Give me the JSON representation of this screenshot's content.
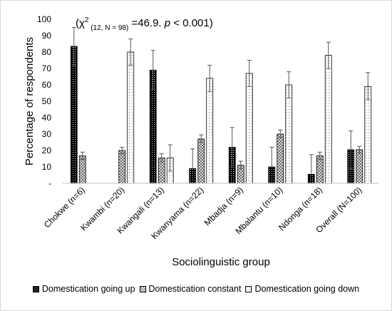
{
  "chart_data": {
    "type": "bar",
    "annotation": {
      "prefix": "(χ",
      "sup": "2",
      "sub": " (12, N = 98)",
      "middle": " =46.9. ",
      "p": "p",
      "suffix": " < 0.001)"
    },
    "xlabel": "Sociolinguistic group",
    "ylabel": "Percentage of respondents",
    "ylim": [
      0,
      100
    ],
    "y_ticks": [
      "-",
      "10",
      "20",
      "30",
      "40",
      "50",
      "60",
      "70",
      "80",
      "90",
      "100"
    ],
    "categories": [
      "Chokwe (n=6)",
      "Kwambi (n=20)",
      "Kwangali (n=13)",
      "Kwanyama (n=22)",
      "Mbadja (n=9)",
      "Mbalantu (n=10)",
      "Ndonga (n=18)",
      "Overall (N=100)"
    ],
    "series": [
      {
        "name": "Domestication going up",
        "values": [
          83.5,
          0,
          69,
          9,
          22,
          10,
          5.5,
          20.5
        ],
        "err_high": [
          95,
          null,
          81,
          21,
          34,
          22,
          17.5,
          32
        ],
        "err_low": [
          72,
          null,
          57,
          null,
          10,
          null,
          null,
          9
        ],
        "pattern": "dense-dots"
      },
      {
        "name": "Domestication constant",
        "values": [
          16.7,
          20,
          15.5,
          27,
          11,
          30,
          16.7,
          20.5
        ],
        "err_high": [
          19,
          22,
          18,
          29.5,
          13.5,
          32.5,
          19,
          22.5
        ],
        "err_low": [
          14.5,
          18,
          13,
          25,
          9,
          28,
          14.5,
          18.5
        ],
        "pattern": "crosshatch"
      },
      {
        "name": "Domestication going down",
        "values": [
          0,
          80,
          15.5,
          64,
          67,
          60,
          78,
          59
        ],
        "err_high": [
          null,
          88,
          23.5,
          72,
          75,
          68,
          86,
          67.5
        ],
        "err_low": [
          null,
          72,
          7.5,
          56,
          59,
          52,
          70,
          51
        ],
        "pattern": "sparse-dots"
      }
    ],
    "grid": false,
    "legend_position": "bottom"
  }
}
